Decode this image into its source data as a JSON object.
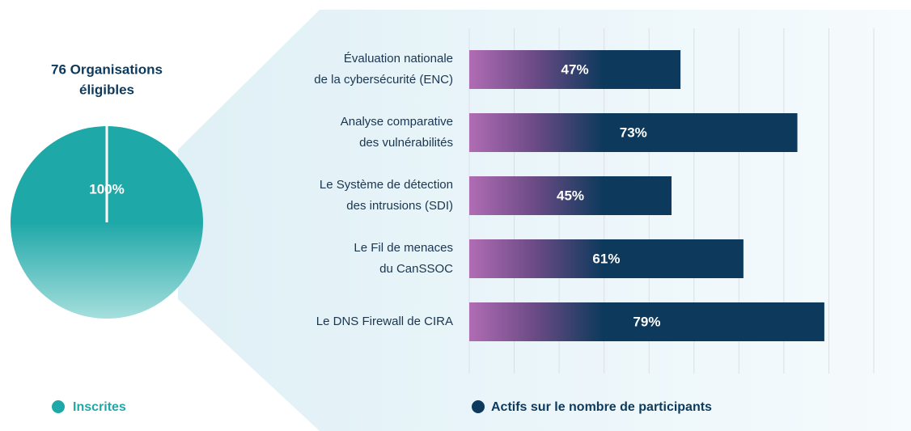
{
  "chart_data": [
    {
      "type": "pie",
      "title": "76 Organisations\néligibles",
      "categories": [
        "Inscrites"
      ],
      "values": [
        100
      ],
      "value_labels": [
        "100%"
      ],
      "color": "#1fa8a8",
      "legend": "bottom-left"
    },
    {
      "type": "bar",
      "orientation": "horizontal",
      "categories": [
        "Évaluation nationale\nde la cybersécurité (ENC)",
        "Analyse comparative\ndes vulnérabilités",
        "Le Système de détection\ndes intrusions (SDI)",
        "Le Fil de menaces\ndu CanSSOC",
        "Le DNS Firewall de CIRA"
      ],
      "series": [
        {
          "name": "Actifs sur le nombre de participants",
          "color": "#0d3a5c",
          "values": [
            47,
            73,
            45,
            61,
            79
          ],
          "value_labels": [
            "47%",
            "73%",
            "45%",
            "61%",
            "79%"
          ]
        }
      ],
      "xlim": [
        0,
        90
      ],
      "xticks": [
        0,
        10,
        20,
        30,
        40,
        50,
        60,
        70,
        80,
        90
      ],
      "grid": true,
      "legend": "bottom"
    }
  ]
}
